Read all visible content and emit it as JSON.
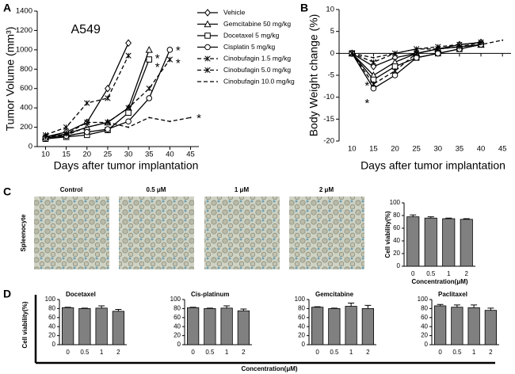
{
  "panel_labels": [
    "A",
    "B",
    "C",
    "D"
  ],
  "micrographs": {
    "labels": [
      "Control",
      "0.5 μM",
      "1 μM",
      "2 μM"
    ],
    "row_label": "Spleenocyte"
  },
  "panel_d": {
    "y_label": "Cell viability(%)",
    "x_label": "Concentration(μM)"
  },
  "chart_data": [
    {
      "type": "line",
      "title": "A549",
      "y_label": "Tumor Volume (mm³)",
      "x_label": "Days after tumor implantation",
      "x": [
        10,
        15,
        20,
        25,
        30,
        35,
        40,
        45
      ],
      "xlim": [
        8,
        47
      ],
      "xticks": [
        10,
        15,
        20,
        25,
        30,
        35,
        40,
        45
      ],
      "ylim": [
        0,
        1400
      ],
      "yticks": [
        0,
        200,
        400,
        600,
        800,
        1000,
        1200,
        1400
      ],
      "legend": "outside right",
      "series": [
        {
          "name": "Vehicle",
          "color": "#000000",
          "marker": "diamond",
          "dash": false,
          "values": [
            100,
            150,
            250,
            600,
            1070,
            null,
            null,
            null
          ]
        },
        {
          "name": "Gemcitabine 50 mg/kg",
          "color": "#000000",
          "marker": "triangle",
          "dash": false,
          "values": [
            100,
            130,
            200,
            250,
            400,
            1000,
            null,
            null
          ]
        },
        {
          "name": "Docetaxel 5 mg/kg",
          "color": "#000000",
          "marker": "square",
          "dash": false,
          "values": [
            80,
            100,
            120,
            170,
            350,
            900,
            null,
            null
          ]
        },
        {
          "name": "Cisplatin 5 mg/kg",
          "color": "#000000",
          "marker": "circle",
          "dash": false,
          "values": [
            90,
            110,
            150,
            180,
            260,
            500,
            1000,
            null
          ]
        },
        {
          "name": "Cinobufagin 1.5 mg/kg",
          "color": "#000000",
          "marker": "x",
          "dash": true,
          "values": [
            120,
            200,
            450,
            500,
            940,
            null,
            null,
            null
          ]
        },
        {
          "name": "Cinobufagin 5.0 mg/kg",
          "color": "#000000",
          "marker": "x",
          "dash": true,
          "values": [
            100,
            130,
            250,
            250,
            400,
            600,
            900,
            null
          ]
        },
        {
          "name": "Cinobufagin 10.0 mg/kg",
          "color": "#000000",
          "marker": "none",
          "dash": true,
          "values": [
            100,
            120,
            200,
            250,
            200,
            300,
            260,
            300
          ]
        }
      ],
      "annotations": [
        {
          "text": "*",
          "x": 37,
          "y": 930
        },
        {
          "text": "*",
          "x": 37,
          "y": 840
        },
        {
          "text": "*",
          "x": 42,
          "y": 1010
        },
        {
          "text": "*",
          "x": 42,
          "y": 880
        },
        {
          "text": "*",
          "x": 47,
          "y": 310
        }
      ]
    },
    {
      "type": "line",
      "y_label": "Body Weight change (%)",
      "x_label": "Days after tumor implantation",
      "x": [
        10,
        15,
        20,
        25,
        30,
        35,
        40,
        45
      ],
      "xlim": [
        7,
        47
      ],
      "xticks": [
        10,
        15,
        20,
        25,
        30,
        35,
        40,
        45
      ],
      "ylim": [
        -20,
        10
      ],
      "yticks": [
        -20,
        -15,
        -10,
        -5,
        0,
        5,
        10
      ],
      "x_axis_crosses": 0,
      "series": [
        {
          "name": "Vehicle",
          "color": "#000000",
          "marker": "diamond",
          "dash": false,
          "values": [
            0,
            -3,
            -1,
            0,
            1,
            2,
            2.5,
            null
          ]
        },
        {
          "name": "Gemcitabine 50 mg/kg",
          "color": "#000000",
          "marker": "triangle",
          "dash": false,
          "values": [
            0,
            -5,
            -2,
            0,
            1,
            1.5,
            2,
            null
          ]
        },
        {
          "name": "Docetaxel 5 mg/kg",
          "color": "#000000",
          "marker": "square",
          "dash": false,
          "values": [
            0,
            -6,
            -3,
            -1,
            0,
            1,
            2,
            null
          ]
        },
        {
          "name": "Cisplatin 5 mg/kg",
          "color": "#000000",
          "marker": "circle",
          "dash": false,
          "values": [
            0,
            -8,
            -5,
            -1,
            0,
            1,
            2,
            null
          ]
        },
        {
          "name": "Cinobufagin 1.5 mg/kg",
          "color": "#000000",
          "marker": "x",
          "dash": true,
          "values": [
            0,
            -2,
            0,
            1,
            1.5,
            2,
            2.5,
            null
          ]
        },
        {
          "name": "Cinobufagin 5.0 mg/kg",
          "color": "#000000",
          "marker": "x",
          "dash": true,
          "values": [
            0,
            -7,
            -4,
            0,
            1,
            1.5,
            2.5,
            null
          ]
        },
        {
          "name": "Cinobufagin 10.0 mg/kg",
          "color": "#000000",
          "marker": "none",
          "dash": true,
          "values": [
            0,
            -1,
            0,
            1,
            1,
            1.5,
            2,
            3
          ]
        }
      ],
      "annotations": [
        {
          "text": "*",
          "x": 13.5,
          "y": -7
        },
        {
          "text": "*",
          "x": 13.5,
          "y": -11
        }
      ]
    },
    {
      "type": "bar",
      "y_label": "Cell viability(%)",
      "x_label": "Concentration(μM)",
      "categories": [
        "0",
        "0.5",
        "1",
        "2"
      ],
      "values": [
        78,
        76,
        75,
        74
      ],
      "errors": [
        3,
        2,
        1,
        1
      ],
      "color": "#808080",
      "ylim": [
        0,
        100
      ],
      "yticks": [
        0,
        20,
        40,
        60,
        80,
        100
      ]
    },
    {
      "type": "bar",
      "title": "Docetaxel",
      "categories": [
        "0",
        "0.5",
        "1",
        "2"
      ],
      "values": [
        82,
        80,
        81,
        74
      ],
      "errors": [
        1,
        1,
        5,
        4
      ],
      "color": "#808080",
      "ylim": [
        0,
        100
      ],
      "yticks": [
        0,
        20,
        40,
        60,
        80,
        100
      ]
    },
    {
      "type": "bar",
      "title": "Cis-platinum",
      "categories": [
        "0",
        "0.5",
        "1",
        "2"
      ],
      "values": [
        82,
        80,
        81,
        75
      ],
      "errors": [
        1,
        1,
        5,
        4
      ],
      "color": "#808080",
      "ylim": [
        0,
        100
      ],
      "yticks": [
        0,
        20,
        40,
        60,
        80,
        100
      ]
    },
    {
      "type": "bar",
      "title": "Gemcitabine",
      "categories": [
        "0",
        "0.5",
        "1",
        "2"
      ],
      "values": [
        83,
        80,
        85,
        80
      ],
      "errors": [
        1,
        1,
        7,
        7
      ],
      "color": "#808080",
      "ylim": [
        0,
        100
      ],
      "yticks": [
        0,
        20,
        40,
        60,
        80,
        100
      ]
    },
    {
      "type": "bar",
      "title": "Paclitaxel",
      "categories": [
        "0",
        "0.5",
        "1",
        "2"
      ],
      "values": [
        86,
        83,
        82,
        76
      ],
      "errors": [
        3,
        5,
        6,
        5
      ],
      "color": "#808080",
      "ylim": [
        0,
        100
      ],
      "yticks": [
        0,
        20,
        40,
        60,
        80,
        100
      ]
    }
  ]
}
